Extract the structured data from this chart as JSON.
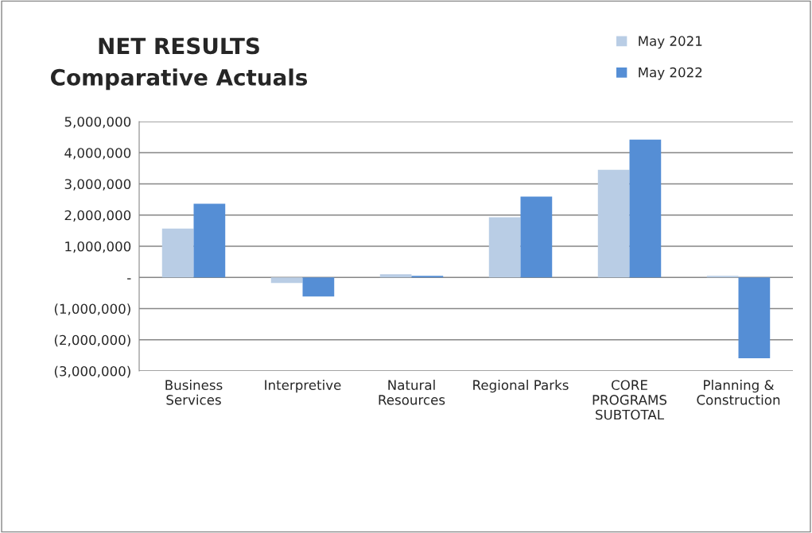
{
  "chart_data": {
    "type": "bar",
    "title": "NET RESULTS\nComparative Actuals",
    "categories": [
      "Business\nServices",
      "Interpretive",
      "Natural\nResources",
      "Regional Parks",
      "CORE\nPROGRAMS\nSUBTOTAL",
      "Planning &\nConstruction"
    ],
    "series": [
      {
        "name": "May 2021",
        "color": "#b9cde5",
        "values": [
          1570000,
          -180000,
          100000,
          1930000,
          3450000,
          50000
        ]
      },
      {
        "name": "May 2022",
        "color": "#558ed5",
        "values": [
          2360000,
          -610000,
          50000,
          2590000,
          4420000,
          -2590000
        ]
      }
    ],
    "ylim": [
      -3000000,
      5000000
    ],
    "yticks": [
      {
        "value": -3000000,
        "label": "(3,000,000)"
      },
      {
        "value": -2000000,
        "label": "(2,000,000)"
      },
      {
        "value": -1000000,
        "label": "(1,000,000)"
      },
      {
        "value": 0,
        "label": "-"
      },
      {
        "value": 1000000,
        "label": "1,000,000"
      },
      {
        "value": 2000000,
        "label": "2,000,000"
      },
      {
        "value": 3000000,
        "label": "3,000,000"
      },
      {
        "value": 4000000,
        "label": "4,000,000"
      },
      {
        "value": 5000000,
        "label": "5,000,000"
      }
    ],
    "grid": "y",
    "legend": "top right"
  }
}
